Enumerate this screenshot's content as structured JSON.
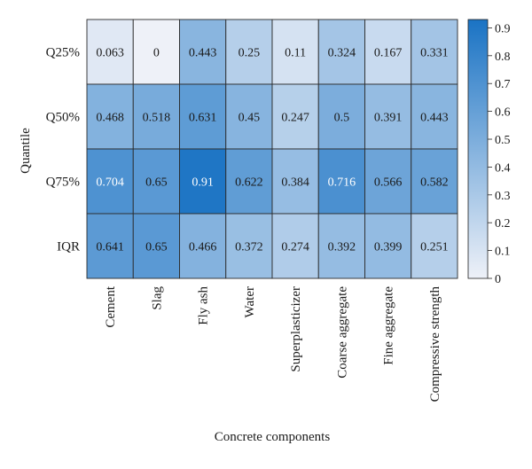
{
  "chart_data": {
    "type": "heatmap",
    "title": "",
    "xlabel": "Concrete components",
    "ylabel": "Quantile",
    "x_categories": [
      "Cement",
      "Slag",
      "Fly ash",
      "Water",
      "Superplasticizer",
      "Coarse aggregate",
      "Fine aggregate",
      "Compressive strength"
    ],
    "y_categories": [
      "Q25%",
      "Q50%",
      "Q75%",
      "IQR"
    ],
    "values": [
      [
        0.063,
        0,
        0.443,
        0.25,
        0.11,
        0.324,
        0.167,
        0.331
      ],
      [
        0.468,
        0.518,
        0.631,
        0.45,
        0.247,
        0.5,
        0.391,
        0.443
      ],
      [
        0.704,
        0.65,
        0.91,
        0.622,
        0.384,
        0.716,
        0.566,
        0.582
      ],
      [
        0.641,
        0.65,
        0.466,
        0.372,
        0.274,
        0.392,
        0.399,
        0.251
      ]
    ],
    "cell_labels": [
      [
        "0.063",
        "0",
        "0.443",
        "0.25",
        "0.11",
        "0.324",
        "0.167",
        "0.331"
      ],
      [
        "0.468",
        "0.518",
        "0.631",
        "0.45",
        "0.247",
        "0.5",
        "0.391",
        "0.443"
      ],
      [
        "0.704",
        "0.65",
        "0.91",
        "0.622",
        "0.384",
        "0.716",
        "0.566",
        "0.582"
      ],
      [
        "0.641",
        "0.65",
        "0.466",
        "0.372",
        "0.274",
        "0.392",
        "0.399",
        "0.251"
      ]
    ],
    "colorbar": {
      "range": [
        0,
        0.93
      ],
      "ticks": [
        0,
        0.1,
        0.2,
        0.3,
        0.4,
        0.5,
        0.6,
        0.7,
        0.8,
        0.9
      ],
      "tick_labels": [
        "0",
        "0.1",
        "0.2",
        "0.3",
        "0.4",
        "0.5",
        "0.6",
        "0.7",
        "0.8",
        "0.9"
      ],
      "colors": [
        "#eef1f8",
        "#1a73c4"
      ],
      "position": "right"
    },
    "light_text_threshold": 0.7,
    "grid": true
  }
}
